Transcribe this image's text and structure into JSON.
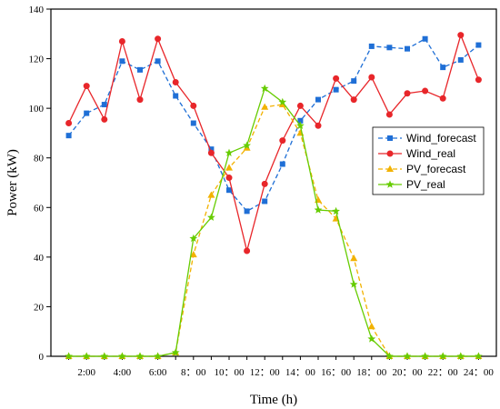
{
  "chart_data": {
    "type": "line",
    "xlabel": "Time (h)",
    "ylabel": "Power (kW)",
    "ylim": [
      0,
      140
    ],
    "yticks": [
      0,
      20,
      40,
      60,
      80,
      100,
      120,
      140
    ],
    "xlim": [
      0,
      25
    ],
    "x": [
      1,
      2,
      3,
      4,
      5,
      6,
      7,
      8,
      9,
      10,
      11,
      12,
      13,
      14,
      15,
      16,
      17,
      18,
      19,
      20,
      21,
      22,
      23,
      24
    ],
    "xtick_labels": [
      "2:00",
      "4:00",
      "6:00",
      "8：00",
      "10：00",
      "12：00",
      "14：00",
      "16：00",
      "18：00",
      "20：00",
      "22：00",
      "24：00"
    ],
    "xtick_positions": [
      2,
      4,
      6,
      8,
      10,
      12,
      14,
      16,
      18,
      20,
      22,
      24
    ],
    "grid": false,
    "legend_position": "right-middle",
    "series": [
      {
        "name": "Wind_forecast",
        "color": "#1f6fd6",
        "line_style": "dashed",
        "marker": "square",
        "values": [
          89,
          98,
          101.5,
          119,
          115.5,
          119,
          105,
          94,
          83.5,
          67,
          58.5,
          62.5,
          77.5,
          95,
          103.5,
          107.5,
          111,
          125,
          124.5,
          124,
          128,
          116.5,
          119.5,
          125.5
        ]
      },
      {
        "name": "Wind_real",
        "color": "#e8262a",
        "line_style": "solid",
        "marker": "circle",
        "values": [
          94,
          109,
          95.5,
          127,
          103.5,
          128,
          110.5,
          101,
          82,
          72,
          42.5,
          69.5,
          87,
          101,
          93,
          112,
          103.5,
          112.5,
          97.5,
          106,
          107,
          104,
          129.5,
          111.5
        ]
      },
      {
        "name": "PV_forecast",
        "color": "#f2b200",
        "line_style": "dashed",
        "marker": "triangle",
        "values": [
          0,
          0,
          0,
          0,
          0,
          0,
          1.5,
          41,
          65,
          76,
          84,
          100.5,
          101.5,
          90,
          63,
          55.5,
          39.5,
          12,
          0,
          0,
          0,
          0,
          0,
          0
        ]
      },
      {
        "name": "PV_real",
        "color": "#66cc00",
        "line_style": "solid",
        "marker": "star",
        "values": [
          0,
          0,
          0,
          0,
          0,
          0,
          1.5,
          47.5,
          56,
          82,
          85,
          108,
          102.5,
          93,
          59,
          58.5,
          29,
          7,
          0,
          0,
          0,
          0,
          0,
          0
        ]
      }
    ]
  }
}
